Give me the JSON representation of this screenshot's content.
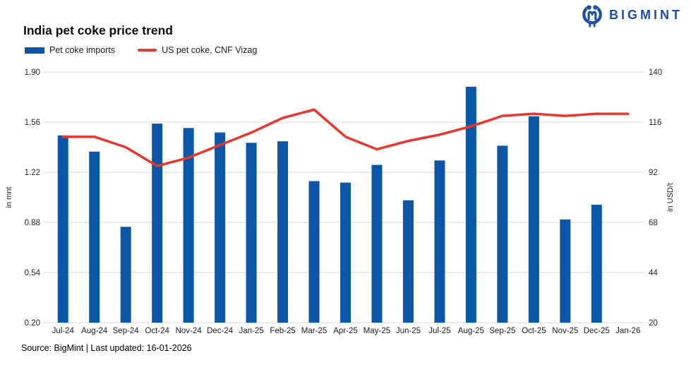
{
  "logo": {
    "text": "BIGMINT",
    "color": "#1d4fa1",
    "icon": "bigmint-owl-icon"
  },
  "header": {
    "title": "India pet coke price trend"
  },
  "legend": [
    {
      "label": "Pet coke imports",
      "swatch": "bar",
      "color": "#0b57a5"
    },
    {
      "label": "US pet coke, CNF Vizag",
      "swatch": "line",
      "color": "#e8382d"
    }
  ],
  "footer": {
    "source": "Source: BigMint | Last updated: 16-01-2026"
  },
  "chart_data": {
    "type": "bar",
    "subtype": "bar+line dual axis",
    "title": "India pet coke price trend",
    "grid": true,
    "legend_position": "top-left",
    "categories": [
      "Jul-24",
      "Aug-24",
      "Sep-24",
      "Oct-24",
      "Nov-24",
      "Dec-24",
      "Jan-25",
      "Feb-25",
      "Mar-25",
      "Apr-25",
      "May-25",
      "Jun-25",
      "Jul-25",
      "Aug-25",
      "Sep-25",
      "Oct-25",
      "Nov-25",
      "Dec-25",
      "Jan-26"
    ],
    "series": [
      {
        "name": "Pet coke imports",
        "type": "bar",
        "axis": "left",
        "unit": "mnt",
        "color": "#0b57a5",
        "values": [
          1.47,
          1.36,
          0.85,
          1.55,
          1.52,
          1.49,
          1.42,
          1.43,
          1.16,
          1.15,
          1.27,
          1.03,
          1.3,
          1.8,
          1.4,
          1.6,
          0.9,
          1.0,
          null
        ]
      },
      {
        "name": "US pet coke, CNF Vizag",
        "type": "line",
        "axis": "right",
        "unit": "USD/t",
        "color": "#e8382d",
        "values": [
          109,
          109,
          104,
          95,
          99,
          105,
          111,
          118,
          122,
          109,
          103,
          107,
          110,
          114,
          119,
          120,
          119,
          120,
          120
        ]
      }
    ],
    "left_axis": {
      "label": "in mnt",
      "min": 0.2,
      "max": 1.9,
      "ticks": [
        "1.90",
        "1.56",
        "1.22",
        "0.88",
        "0.54",
        "0.20"
      ]
    },
    "right_axis": {
      "label": "in USD/t",
      "min": 20,
      "max": 140,
      "ticks": [
        "140",
        "116",
        "92",
        "68",
        "44",
        "20"
      ]
    },
    "colors": {
      "gridline": "#d9d9d9",
      "tick_text": "#262626"
    }
  }
}
